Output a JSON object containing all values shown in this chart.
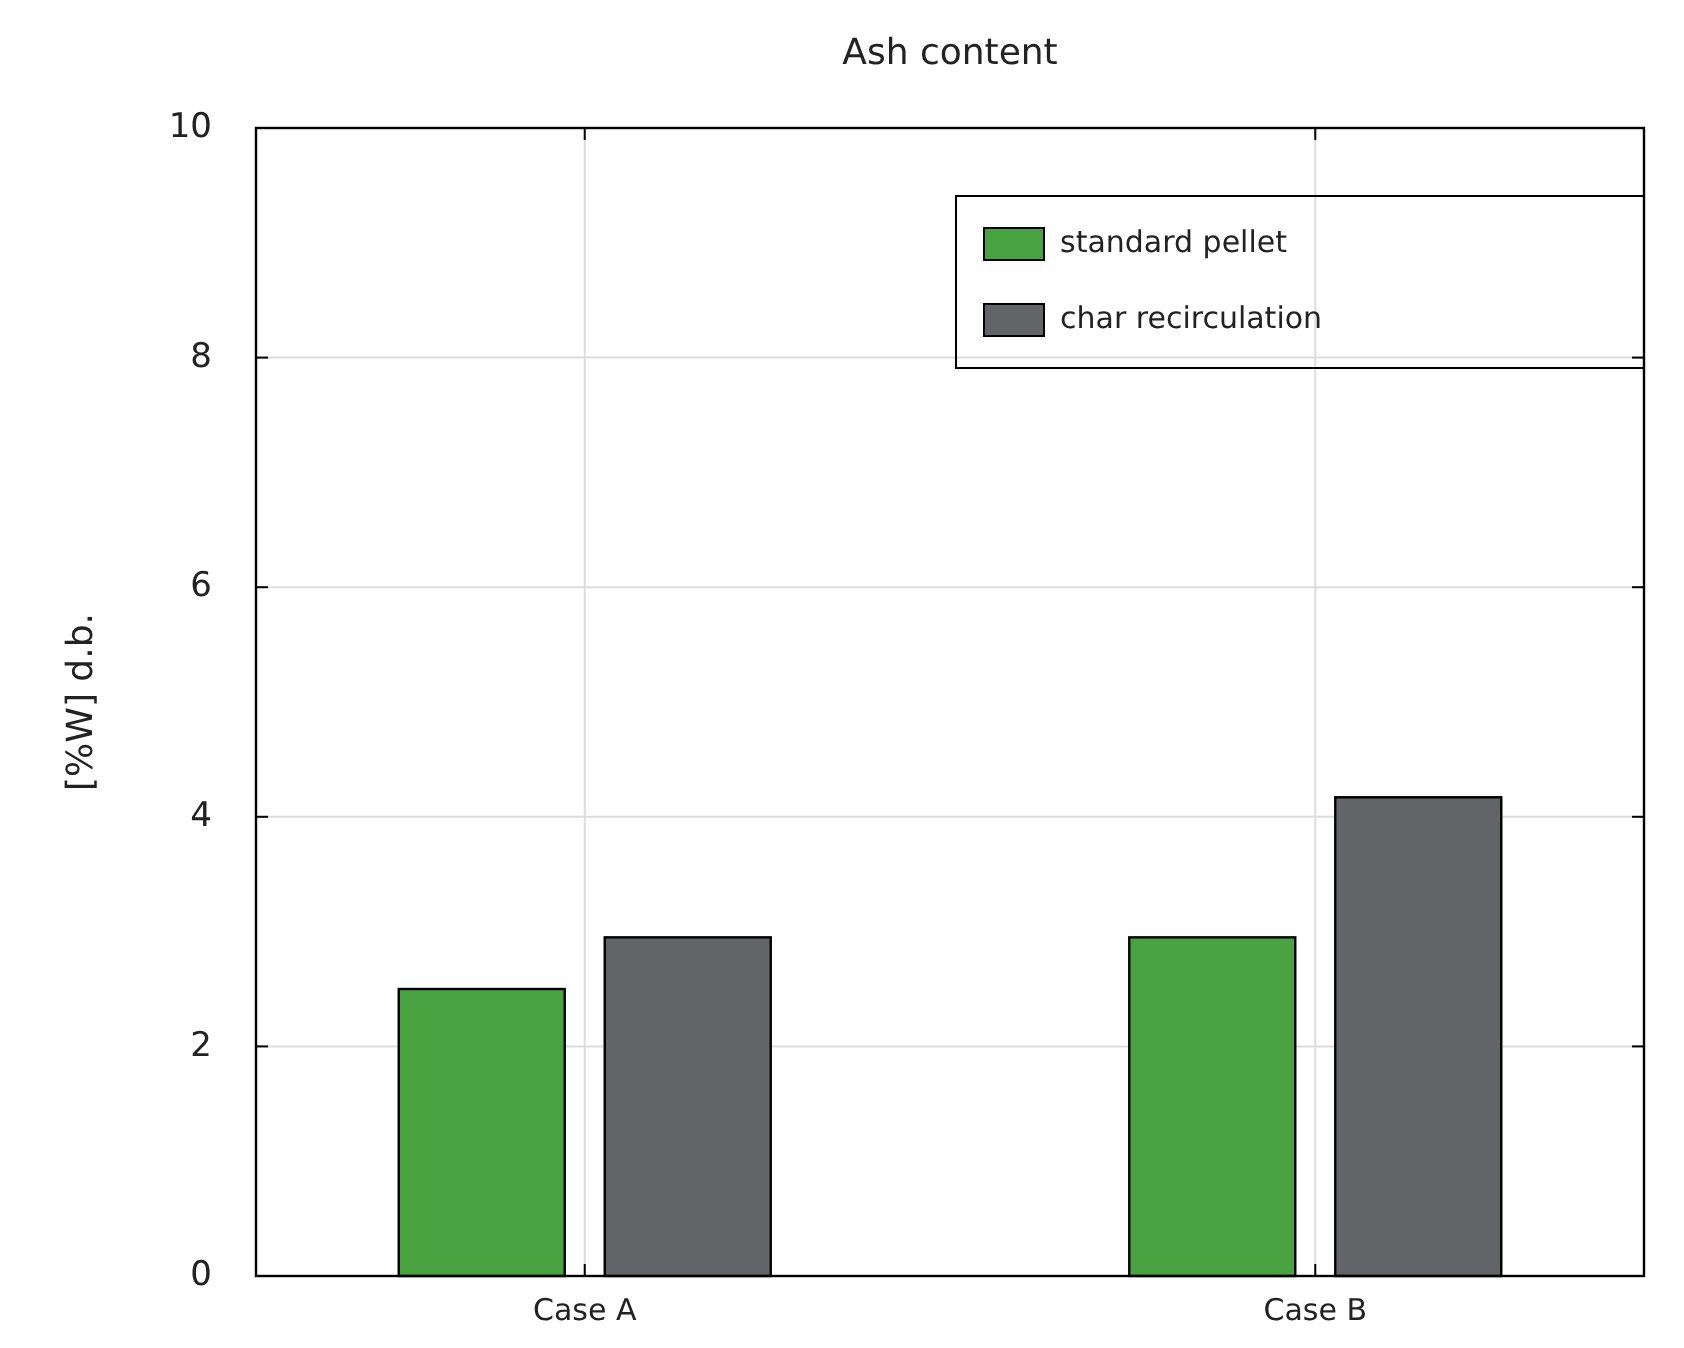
{
  "chart_data": {
    "type": "bar",
    "title": "Ash content",
    "ylabel": "[%W] d.b.",
    "categories": [
      "Case A",
      "Case B"
    ],
    "series": [
      {
        "name": "standard pellet",
        "color": "#48a23f",
        "values": [
          2.5,
          2.95
        ]
      },
      {
        "name": "char recirculation",
        "color": "#636467",
        "values": [
          2.95,
          4.17
        ]
      }
    ],
    "ylim": [
      0,
      10
    ],
    "yticks": [
      0,
      2,
      4,
      6,
      8,
      10
    ],
    "grid": true,
    "legend": "top right"
  }
}
